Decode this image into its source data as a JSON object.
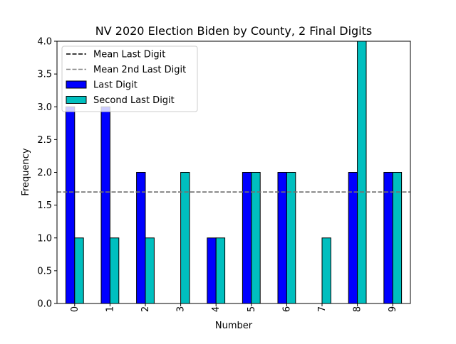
{
  "chart_data": {
    "type": "bar",
    "title": "NV 2020 Election Biden by County, 2 Final Digits",
    "xlabel": "Number",
    "ylabel": "Frequency",
    "categories": [
      "0",
      "1",
      "2",
      "3",
      "4",
      "5",
      "6",
      "7",
      "8",
      "9"
    ],
    "series": [
      {
        "name": "Last Digit",
        "color": "#0000ff",
        "values": [
          3,
          3,
          2,
          0,
          1,
          2,
          2,
          0,
          2,
          2
        ]
      },
      {
        "name": "Second Last Digit",
        "color": "#00bfbf",
        "values": [
          1,
          1,
          1,
          2,
          1,
          2,
          2,
          1,
          4,
          2
        ]
      }
    ],
    "reference_lines": [
      {
        "name": "Mean Last Digit",
        "value": 1.7,
        "color": "#000000",
        "style": "dashed"
      },
      {
        "name": "Mean 2nd Last Digit",
        "value": 1.7,
        "color": "#808080",
        "style": "dashed"
      }
    ],
    "ylim": [
      0,
      4.0
    ],
    "yticks": [
      "0.0",
      "0.5",
      "1.0",
      "1.5",
      "2.0",
      "2.5",
      "3.0",
      "3.5",
      "4.0"
    ],
    "ytick_values": [
      0,
      0.5,
      1.0,
      1.5,
      2.0,
      2.5,
      3.0,
      3.5,
      4.0
    ],
    "grid": false,
    "legend_position": "top-left"
  }
}
